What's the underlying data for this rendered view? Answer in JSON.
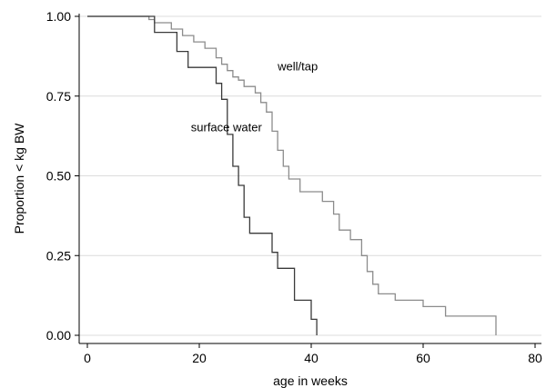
{
  "chart_data": {
    "type": "line",
    "subtype": "step",
    "xlabel": "age in weeks",
    "ylabel": "Proportion < kg BW",
    "xlim": [
      0,
      80
    ],
    "ylim": [
      0,
      1
    ],
    "x_ticks": [
      0,
      20,
      40,
      60,
      80
    ],
    "y_ticks": [
      0.0,
      0.25,
      0.5,
      0.75,
      1.0
    ],
    "y_tick_labels": [
      "0.00",
      "0.25",
      "0.50",
      "0.75",
      "1.00"
    ],
    "grid": "horizontal",
    "series": [
      {
        "name": "well/tap",
        "color": "#8c8c8c",
        "points": [
          [
            0,
            1.0
          ],
          [
            11,
            1.0
          ],
          [
            11,
            0.99
          ],
          [
            12,
            0.99
          ],
          [
            12,
            0.98
          ],
          [
            15,
            0.98
          ],
          [
            15,
            0.96
          ],
          [
            17,
            0.96
          ],
          [
            17,
            0.94
          ],
          [
            19,
            0.94
          ],
          [
            19,
            0.92
          ],
          [
            21,
            0.92
          ],
          [
            21,
            0.9
          ],
          [
            23,
            0.9
          ],
          [
            23,
            0.87
          ],
          [
            24,
            0.87
          ],
          [
            24,
            0.85
          ],
          [
            25,
            0.85
          ],
          [
            25,
            0.83
          ],
          [
            26,
            0.83
          ],
          [
            26,
            0.81
          ],
          [
            27,
            0.81
          ],
          [
            27,
            0.8
          ],
          [
            28,
            0.8
          ],
          [
            28,
            0.78
          ],
          [
            30,
            0.78
          ],
          [
            30,
            0.76
          ],
          [
            31,
            0.76
          ],
          [
            31,
            0.73
          ],
          [
            32,
            0.73
          ],
          [
            32,
            0.7
          ],
          [
            33,
            0.7
          ],
          [
            33,
            0.64
          ],
          [
            34,
            0.64
          ],
          [
            34,
            0.58
          ],
          [
            35,
            0.58
          ],
          [
            35,
            0.53
          ],
          [
            36,
            0.53
          ],
          [
            36,
            0.49
          ],
          [
            38,
            0.49
          ],
          [
            38,
            0.45
          ],
          [
            42,
            0.45
          ],
          [
            42,
            0.42
          ],
          [
            44,
            0.42
          ],
          [
            44,
            0.38
          ],
          [
            45,
            0.38
          ],
          [
            45,
            0.33
          ],
          [
            47,
            0.33
          ],
          [
            47,
            0.3
          ],
          [
            49,
            0.3
          ],
          [
            49,
            0.25
          ],
          [
            50,
            0.25
          ],
          [
            50,
            0.2
          ],
          [
            51,
            0.2
          ],
          [
            51,
            0.16
          ],
          [
            52,
            0.16
          ],
          [
            52,
            0.13
          ],
          [
            55,
            0.13
          ],
          [
            55,
            0.11
          ],
          [
            60,
            0.11
          ],
          [
            60,
            0.09
          ],
          [
            64,
            0.09
          ],
          [
            64,
            0.06
          ],
          [
            73,
            0.06
          ],
          [
            73,
            0.0
          ]
        ]
      },
      {
        "name": "surface water",
        "color": "#3a3a3a",
        "points": [
          [
            0,
            1.0
          ],
          [
            12,
            1.0
          ],
          [
            12,
            0.95
          ],
          [
            16,
            0.95
          ],
          [
            16,
            0.89
          ],
          [
            18,
            0.89
          ],
          [
            18,
            0.84
          ],
          [
            23,
            0.84
          ],
          [
            23,
            0.79
          ],
          [
            24,
            0.79
          ],
          [
            24,
            0.74
          ],
          [
            25,
            0.74
          ],
          [
            25,
            0.63
          ],
          [
            26,
            0.63
          ],
          [
            26,
            0.53
          ],
          [
            27,
            0.53
          ],
          [
            27,
            0.47
          ],
          [
            28,
            0.47
          ],
          [
            28,
            0.37
          ],
          [
            29,
            0.37
          ],
          [
            29,
            0.32
          ],
          [
            33,
            0.32
          ],
          [
            33,
            0.26
          ],
          [
            34,
            0.26
          ],
          [
            34,
            0.21
          ],
          [
            37,
            0.21
          ],
          [
            37,
            0.11
          ],
          [
            40,
            0.11
          ],
          [
            40,
            0.05
          ],
          [
            41,
            0.05
          ],
          [
            41,
            0.0
          ]
        ]
      }
    ],
    "annotations": [
      {
        "text": "well/tap",
        "x": 34,
        "y": 0.83
      },
      {
        "text": "surface water",
        "x": 18.5,
        "y": 0.64
      }
    ]
  }
}
